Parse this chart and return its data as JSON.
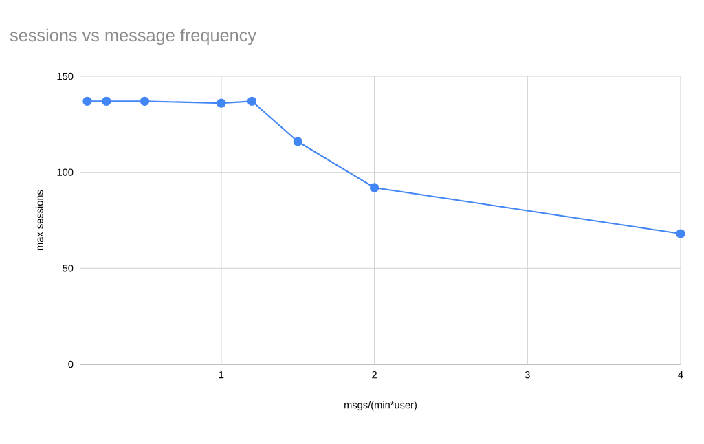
{
  "chart_data": {
    "type": "line",
    "title": "sessions vs message frequency",
    "xlabel": "msgs/(min*user)",
    "ylabel": "max sessions",
    "x": [
      0.125,
      0.25,
      0.5,
      1,
      1.2,
      1.5,
      2,
      4
    ],
    "series": [
      {
        "color": "#4285f4",
        "values": [
          137,
          137,
          137,
          136,
          137,
          116,
          92,
          68
        ]
      }
    ],
    "xlim": [
      0.08,
      4
    ],
    "ylim": [
      0,
      150
    ],
    "xticks": [
      1,
      2,
      3,
      4
    ],
    "yticks": [
      0,
      50,
      100,
      150
    ],
    "grid": true,
    "marker": "circle",
    "line_style": "solid"
  }
}
